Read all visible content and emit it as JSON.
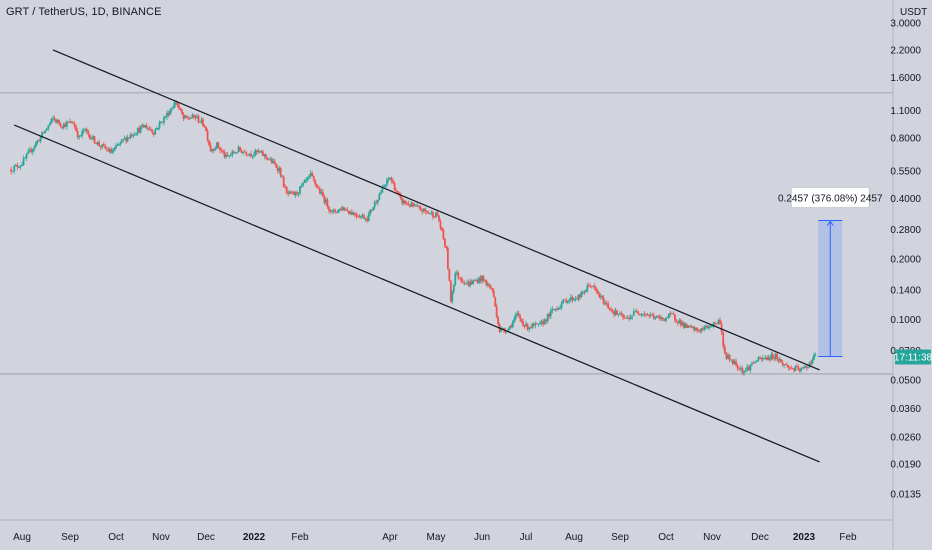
{
  "header": {
    "symbol_title": "GRT / TetherUS, 1D, BINANCE"
  },
  "chart_data": {
    "type": "candlestick",
    "symbol": "GRT / TetherUS",
    "interval": "1D",
    "exchange": "BINANCE",
    "y_scale": "log",
    "currency": "USDT",
    "y_ticks": [
      "3.0000",
      "2.2000",
      "1.6000",
      "1.1000",
      "0.8000",
      "0.5500",
      "0.4000",
      "0.2800",
      "0.2000",
      "0.1400",
      "0.1000",
      "0.0700",
      "0.0500",
      "0.0360",
      "0.0260",
      "0.0190",
      "0.0135"
    ],
    "x_ticks": [
      {
        "label": "Aug",
        "date": "2021-08-01",
        "bold": false
      },
      {
        "label": "Sep",
        "date": "2021-09-01",
        "bold": false
      },
      {
        "label": "Oct",
        "date": "2021-10-01",
        "bold": false
      },
      {
        "label": "Nov",
        "date": "2021-11-01",
        "bold": false
      },
      {
        "label": "Dec",
        "date": "2021-12-01",
        "bold": false
      },
      {
        "label": "2022",
        "date": "2022-01-01",
        "bold": true
      },
      {
        "label": "Feb",
        "date": "2022-02-01",
        "bold": false
      },
      {
        "label": "Apr",
        "date": "2022-04-01",
        "bold": false
      },
      {
        "label": "May",
        "date": "2022-05-01",
        "bold": false
      },
      {
        "label": "Jun",
        "date": "2022-06-01",
        "bold": false
      },
      {
        "label": "Jul",
        "date": "2022-07-01",
        "bold": false
      },
      {
        "label": "Aug",
        "date": "2022-08-01",
        "bold": false
      },
      {
        "label": "Sep",
        "date": "2022-09-01",
        "bold": false
      },
      {
        "label": "Oct",
        "date": "2022-10-01",
        "bold": false
      },
      {
        "label": "Nov",
        "date": "2022-11-01",
        "bold": false
      },
      {
        "label": "Dec",
        "date": "2022-12-01",
        "bold": false
      },
      {
        "label": "2023",
        "date": "2023-01-01",
        "bold": true
      },
      {
        "label": "Feb",
        "date": "2023-02-01",
        "bold": false
      }
    ],
    "price_path": [
      [
        "2021-07-25",
        0.56
      ],
      [
        "2021-08-01",
        0.6
      ],
      [
        "2021-08-08",
        0.72
      ],
      [
        "2021-08-15",
        0.85
      ],
      [
        "2021-08-21",
        1.0
      ],
      [
        "2021-08-27",
        0.93
      ],
      [
        "2021-09-03",
        0.96
      ],
      [
        "2021-09-07",
        0.8
      ],
      [
        "2021-09-10",
        0.88
      ],
      [
        "2021-09-20",
        0.74
      ],
      [
        "2021-09-28",
        0.68
      ],
      [
        "2021-10-06",
        0.78
      ],
      [
        "2021-10-14",
        0.86
      ],
      [
        "2021-10-21",
        0.92
      ],
      [
        "2021-10-27",
        0.86
      ],
      [
        "2021-11-05",
        1.05
      ],
      [
        "2021-11-11",
        1.22
      ],
      [
        "2021-11-16",
        1.0
      ],
      [
        "2021-11-24",
        1.02
      ],
      [
        "2021-11-30",
        0.93
      ],
      [
        "2021-12-04",
        0.7
      ],
      [
        "2021-12-08",
        0.74
      ],
      [
        "2021-12-14",
        0.64
      ],
      [
        "2021-12-22",
        0.7
      ],
      [
        "2021-12-30",
        0.67
      ],
      [
        "2022-01-04",
        0.68
      ],
      [
        "2022-01-10",
        0.64
      ],
      [
        "2022-01-18",
        0.56
      ],
      [
        "2022-01-23",
        0.42
      ],
      [
        "2022-01-29",
        0.42
      ],
      [
        "2022-02-08",
        0.52
      ],
      [
        "2022-02-12",
        0.46
      ],
      [
        "2022-02-22",
        0.34
      ],
      [
        "2022-03-01",
        0.36
      ],
      [
        "2022-03-07",
        0.34
      ],
      [
        "2022-03-17",
        0.32
      ],
      [
        "2022-03-25",
        0.42
      ],
      [
        "2022-04-01",
        0.51
      ],
      [
        "2022-04-08",
        0.39
      ],
      [
        "2022-04-18",
        0.36
      ],
      [
        "2022-04-26",
        0.34
      ],
      [
        "2022-05-02",
        0.33
      ],
      [
        "2022-05-08",
        0.22
      ],
      [
        "2022-05-11",
        0.125
      ],
      [
        "2022-05-14",
        0.17
      ],
      [
        "2022-05-22",
        0.15
      ],
      [
        "2022-06-01",
        0.16
      ],
      [
        "2022-06-08",
        0.14
      ],
      [
        "2022-06-13",
        0.088
      ],
      [
        "2022-06-19",
        0.09
      ],
      [
        "2022-06-25",
        0.105
      ],
      [
        "2022-07-01",
        0.092
      ],
      [
        "2022-07-10",
        0.093
      ],
      [
        "2022-07-18",
        0.11
      ],
      [
        "2022-07-27",
        0.125
      ],
      [
        "2022-08-05",
        0.13
      ],
      [
        "2022-08-12",
        0.15
      ],
      [
        "2022-08-20",
        0.125
      ],
      [
        "2022-08-27",
        0.11
      ],
      [
        "2022-09-05",
        0.1
      ],
      [
        "2022-09-12",
        0.11
      ],
      [
        "2022-09-20",
        0.105
      ],
      [
        "2022-09-28",
        0.1
      ],
      [
        "2022-10-05",
        0.105
      ],
      [
        "2022-10-14",
        0.092
      ],
      [
        "2022-10-22",
        0.088
      ],
      [
        "2022-10-27",
        0.09
      ],
      [
        "2022-11-02",
        0.095
      ],
      [
        "2022-11-06",
        0.098
      ],
      [
        "2022-11-09",
        0.066
      ],
      [
        "2022-11-14",
        0.062
      ],
      [
        "2022-11-21",
        0.055
      ],
      [
        "2022-11-28",
        0.062
      ],
      [
        "2022-12-05",
        0.064
      ],
      [
        "2022-12-12",
        0.066
      ],
      [
        "2022-12-17",
        0.06
      ],
      [
        "2022-12-23",
        0.057
      ],
      [
        "2022-12-30",
        0.056
      ],
      [
        "2023-01-03",
        0.058
      ],
      [
        "2023-01-06",
        0.062
      ],
      [
        "2023-01-09",
        0.0665
      ]
    ],
    "channel": {
      "upper": [
        [
          "2021-08-21",
          2.2
        ],
        [
          "2023-01-12",
          0.056
        ]
      ],
      "lower": [
        [
          "2021-07-27",
          0.93
        ],
        [
          "2023-01-12",
          0.0195
        ]
      ]
    },
    "horizontal_lines": [
      1.345,
      0.0535
    ],
    "projection": {
      "label": "0.2457 (376.08%) 2457",
      "from_price": 0.0653,
      "to_price": 0.311,
      "start_date": "2023-01-11",
      "end_date": "2023-01-28"
    },
    "last_price_tag": {
      "label": "17:11:38",
      "price": 0.0653
    },
    "axis_currency_label": "USDT",
    "colors": {
      "background": "#d1d4dc",
      "up": "#26a69a",
      "down": "#ef5350",
      "channel": "#131722",
      "projection_fill": "#aebde8",
      "projection_stroke": "#2962ff",
      "price_tag": "#26a69a"
    }
  }
}
